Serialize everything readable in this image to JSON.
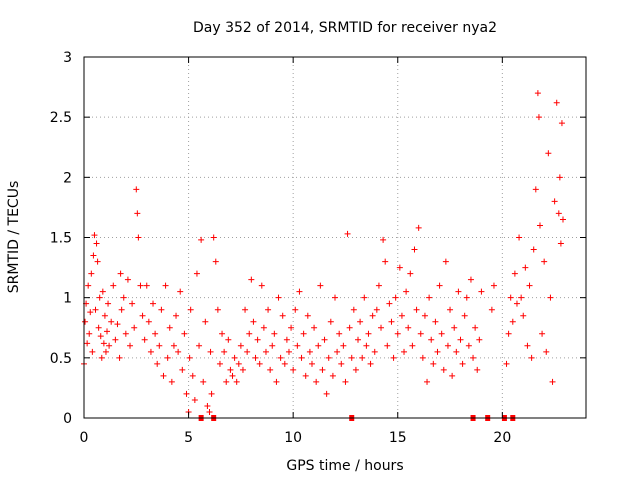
{
  "chart_data": {
    "type": "scatter",
    "title": "Day 352 of 2014, SRMTID for receiver nya2",
    "xlabel": "GPS time / hours",
    "ylabel": "SRMTID / TECUs",
    "xlim": [
      0,
      24
    ],
    "ylim": [
      0,
      3
    ],
    "xticks": [
      0,
      5,
      10,
      15,
      20
    ],
    "xtick_labels": [
      "0",
      "5",
      "10",
      "15",
      "20"
    ],
    "yticks": [
      0,
      0.5,
      1,
      1.5,
      2,
      2.5,
      3
    ],
    "ytick_labels": [
      "0",
      "0.5",
      "1",
      "1.5",
      "2",
      "2.5",
      "3"
    ],
    "grid": true,
    "legend": "none",
    "marker": "+",
    "color": "#ff0000",
    "series": [
      {
        "name": "SRMTID",
        "points": [
          [
            0.0,
            0.45
          ],
          [
            0.05,
            0.8
          ],
          [
            0.1,
            0.95
          ],
          [
            0.15,
            0.62
          ],
          [
            0.2,
            1.1
          ],
          [
            0.25,
            0.7
          ],
          [
            0.3,
            0.88
          ],
          [
            0.35,
            1.2
          ],
          [
            0.4,
            0.55
          ],
          [
            0.45,
            1.35
          ],
          [
            0.5,
            1.52
          ],
          [
            0.55,
            0.9
          ],
          [
            0.6,
            1.45
          ],
          [
            0.65,
            1.3
          ],
          [
            0.7,
            0.75
          ],
          [
            0.75,
            1.0
          ],
          [
            0.8,
            0.68
          ],
          [
            0.85,
            0.5
          ],
          [
            0.9,
            1.05
          ],
          [
            0.95,
            0.62
          ],
          [
            1.0,
            0.85
          ],
          [
            1.05,
            0.55
          ],
          [
            1.1,
            0.72
          ],
          [
            1.15,
            0.95
          ],
          [
            1.2,
            0.6
          ],
          [
            1.3,
            0.8
          ],
          [
            1.4,
            1.1
          ],
          [
            1.5,
            0.65
          ],
          [
            1.6,
            0.78
          ],
          [
            1.7,
            0.5
          ],
          [
            1.75,
            1.2
          ],
          [
            1.8,
            0.9
          ],
          [
            1.9,
            1.0
          ],
          [
            2.0,
            0.7
          ],
          [
            2.1,
            1.15
          ],
          [
            2.2,
            0.6
          ],
          [
            2.3,
            0.95
          ],
          [
            2.4,
            0.75
          ],
          [
            2.5,
            1.9
          ],
          [
            2.55,
            1.7
          ],
          [
            2.6,
            1.5
          ],
          [
            2.7,
            1.1
          ],
          [
            2.8,
            0.85
          ],
          [
            2.9,
            0.65
          ],
          [
            3.0,
            1.1
          ],
          [
            3.1,
            0.8
          ],
          [
            3.2,
            0.55
          ],
          [
            3.3,
            0.95
          ],
          [
            3.4,
            0.7
          ],
          [
            3.5,
            0.45
          ],
          [
            3.6,
            0.6
          ],
          [
            3.7,
            0.9
          ],
          [
            3.8,
            0.35
          ],
          [
            3.9,
            1.1
          ],
          [
            4.0,
            0.5
          ],
          [
            4.1,
            0.75
          ],
          [
            4.2,
            0.3
          ],
          [
            4.3,
            0.6
          ],
          [
            4.4,
            0.85
          ],
          [
            4.5,
            0.55
          ],
          [
            4.6,
            1.05
          ],
          [
            4.7,
            0.4
          ],
          [
            4.8,
            0.7
          ],
          [
            4.9,
            0.2
          ],
          [
            5.0,
            0.05
          ],
          [
            5.05,
            0.5
          ],
          [
            5.1,
            0.9
          ],
          [
            5.2,
            0.35
          ],
          [
            5.3,
            0.15
          ],
          [
            5.4,
            1.2
          ],
          [
            5.5,
            0.6
          ],
          [
            5.6,
            1.48
          ],
          [
            5.7,
            0.3
          ],
          [
            5.8,
            0.8
          ],
          [
            5.9,
            0.1
          ],
          [
            6.0,
            0.05
          ],
          [
            6.05,
            0.55
          ],
          [
            6.1,
            0.2
          ],
          [
            6.2,
            1.5
          ],
          [
            6.3,
            1.3
          ],
          [
            6.4,
            0.9
          ],
          [
            6.5,
            0.45
          ],
          [
            6.6,
            0.7
          ],
          [
            6.7,
            0.55
          ],
          [
            6.8,
            0.3
          ],
          [
            6.9,
            0.65
          ],
          [
            7.0,
            0.4
          ],
          [
            7.1,
            0.35
          ],
          [
            7.2,
            0.5
          ],
          [
            7.3,
            0.3
          ],
          [
            7.4,
            0.45
          ],
          [
            7.5,
            0.6
          ],
          [
            7.6,
            0.4
          ],
          [
            7.7,
            0.9
          ],
          [
            7.8,
            0.55
          ],
          [
            7.9,
            0.7
          ],
          [
            8.0,
            1.15
          ],
          [
            8.1,
            0.8
          ],
          [
            8.2,
            0.5
          ],
          [
            8.3,
            0.65
          ],
          [
            8.4,
            0.45
          ],
          [
            8.5,
            1.1
          ],
          [
            8.6,
            0.75
          ],
          [
            8.7,
            0.55
          ],
          [
            8.8,
            0.9
          ],
          [
            8.9,
            0.4
          ],
          [
            9.0,
            0.6
          ],
          [
            9.1,
            0.7
          ],
          [
            9.2,
            0.3
          ],
          [
            9.3,
            1.0
          ],
          [
            9.4,
            0.5
          ],
          [
            9.5,
            0.85
          ],
          [
            9.6,
            0.45
          ],
          [
            9.7,
            0.65
          ],
          [
            9.8,
            0.55
          ],
          [
            9.9,
            0.75
          ],
          [
            10.0,
            0.4
          ],
          [
            10.1,
            0.9
          ],
          [
            10.2,
            0.6
          ],
          [
            10.3,
            1.05
          ],
          [
            10.4,
            0.5
          ],
          [
            10.5,
            0.7
          ],
          [
            10.6,
            0.35
          ],
          [
            10.7,
            0.85
          ],
          [
            10.8,
            0.55
          ],
          [
            10.9,
            0.45
          ],
          [
            11.0,
            0.75
          ],
          [
            11.1,
            0.3
          ],
          [
            11.2,
            0.6
          ],
          [
            11.3,
            1.1
          ],
          [
            11.4,
            0.4
          ],
          [
            11.5,
            0.65
          ],
          [
            11.6,
            0.2
          ],
          [
            11.7,
            0.5
          ],
          [
            11.8,
            0.8
          ],
          [
            11.9,
            0.35
          ],
          [
            12.0,
            1.0
          ],
          [
            12.1,
            0.55
          ],
          [
            12.2,
            0.7
          ],
          [
            12.3,
            0.45
          ],
          [
            12.4,
            0.6
          ],
          [
            12.5,
            0.3
          ],
          [
            12.6,
            1.53
          ],
          [
            12.7,
            0.75
          ],
          [
            12.8,
            0.5
          ],
          [
            12.9,
            0.9
          ],
          [
            13.0,
            0.4
          ],
          [
            13.1,
            0.65
          ],
          [
            13.2,
            0.8
          ],
          [
            13.3,
            0.5
          ],
          [
            13.4,
            1.0
          ],
          [
            13.5,
            0.6
          ],
          [
            13.6,
            0.7
          ],
          [
            13.7,
            0.45
          ],
          [
            13.8,
            0.85
          ],
          [
            13.9,
            0.55
          ],
          [
            14.0,
            0.9
          ],
          [
            14.1,
            1.1
          ],
          [
            14.2,
            0.75
          ],
          [
            14.3,
            1.48
          ],
          [
            14.4,
            1.3
          ],
          [
            14.5,
            0.6
          ],
          [
            14.6,
            0.95
          ],
          [
            14.7,
            0.8
          ],
          [
            14.8,
            0.5
          ],
          [
            14.9,
            1.0
          ],
          [
            15.0,
            0.7
          ],
          [
            15.1,
            1.25
          ],
          [
            15.2,
            0.85
          ],
          [
            15.3,
            0.55
          ],
          [
            15.4,
            1.05
          ],
          [
            15.5,
            0.75
          ],
          [
            15.6,
            1.2
          ],
          [
            15.7,
            0.6
          ],
          [
            15.8,
            1.4
          ],
          [
            15.9,
            0.9
          ],
          [
            16.0,
            1.58
          ],
          [
            16.1,
            0.7
          ],
          [
            16.2,
            0.5
          ],
          [
            16.3,
            0.85
          ],
          [
            16.4,
            0.3
          ],
          [
            16.5,
            1.0
          ],
          [
            16.6,
            0.65
          ],
          [
            16.7,
            0.45
          ],
          [
            16.8,
            0.8
          ],
          [
            16.9,
            0.55
          ],
          [
            17.0,
            1.1
          ],
          [
            17.1,
            0.7
          ],
          [
            17.2,
            0.4
          ],
          [
            17.3,
            1.3
          ],
          [
            17.4,
            0.6
          ],
          [
            17.5,
            0.9
          ],
          [
            17.6,
            0.35
          ],
          [
            17.7,
            0.75
          ],
          [
            17.8,
            0.55
          ],
          [
            17.9,
            1.05
          ],
          [
            18.0,
            0.65
          ],
          [
            18.1,
            0.45
          ],
          [
            18.2,
            0.85
          ],
          [
            18.3,
            1.0
          ],
          [
            18.4,
            0.6
          ],
          [
            18.5,
            1.15
          ],
          [
            18.6,
            0.5
          ],
          [
            18.7,
            0.75
          ],
          [
            18.8,
            0.4
          ],
          [
            18.9,
            0.65
          ],
          [
            19.0,
            1.05
          ],
          [
            19.5,
            0.9
          ],
          [
            19.6,
            1.1
          ],
          [
            20.2,
            0.45
          ],
          [
            20.3,
            0.7
          ],
          [
            20.4,
            1.0
          ],
          [
            20.5,
            0.8
          ],
          [
            20.6,
            1.2
          ],
          [
            20.7,
            0.95
          ],
          [
            20.8,
            1.5
          ],
          [
            20.9,
            1.0
          ],
          [
            21.0,
            0.85
          ],
          [
            21.1,
            1.25
          ],
          [
            21.2,
            0.6
          ],
          [
            21.3,
            1.1
          ],
          [
            21.4,
            0.5
          ],
          [
            21.5,
            1.4
          ],
          [
            21.6,
            1.9
          ],
          [
            21.7,
            2.7
          ],
          [
            21.75,
            2.5
          ],
          [
            21.8,
            1.6
          ],
          [
            21.9,
            0.7
          ],
          [
            22.0,
            1.3
          ],
          [
            22.1,
            0.55
          ],
          [
            22.2,
            2.2
          ],
          [
            22.3,
            1.0
          ],
          [
            22.4,
            0.3
          ],
          [
            22.5,
            1.8
          ],
          [
            22.6,
            2.62
          ],
          [
            22.7,
            1.7
          ],
          [
            22.75,
            2.0
          ],
          [
            22.8,
            1.45
          ],
          [
            22.85,
            2.45
          ],
          [
            22.9,
            1.65
          ]
        ],
        "zero_points": [
          5.6,
          6.2,
          12.8,
          18.6,
          19.3,
          20.1,
          20.5
        ]
      }
    ]
  }
}
